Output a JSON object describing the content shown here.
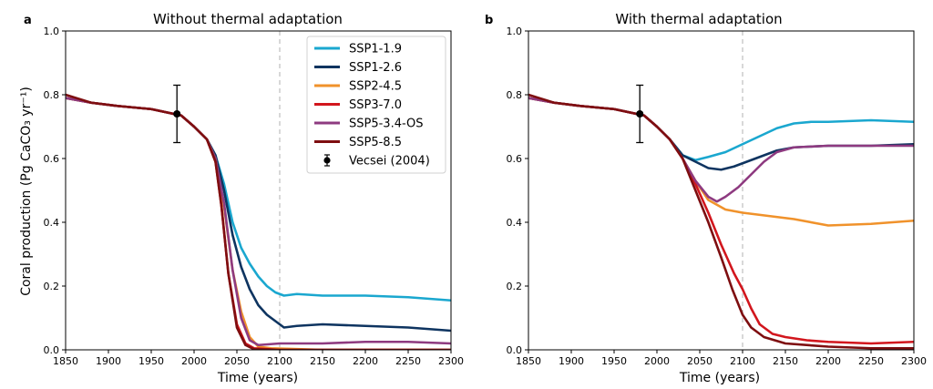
{
  "chart_data": [
    {
      "type": "line",
      "panel_letter": "a",
      "title": "Without thermal adaptation",
      "xlabel": "Time (years)",
      "ylabel": "Coral production (Pg CaCO₃ yr⁻¹)",
      "xlim": [
        1850,
        2300
      ],
      "ylim": [
        0,
        1.0
      ],
      "xticks": [
        "1850",
        "1900",
        "1950",
        "2000",
        "2050",
        "2100",
        "2150",
        "2200",
        "2250",
        "2300"
      ],
      "yticks": [
        "0.0",
        "0.2",
        "0.4",
        "0.6",
        "0.8",
        "1.0"
      ],
      "reference_line_x": 2100,
      "legend_position": "top-right",
      "series": [
        {
          "name": "SSP1-1.9",
          "color": "#1aa7cf",
          "points": [
            [
              1850,
              0.79
            ],
            [
              1880,
              0.775
            ],
            [
              1910,
              0.765
            ],
            [
              1950,
              0.755
            ],
            [
              1985,
              0.735
            ],
            [
              2000,
              0.7
            ],
            [
              2015,
              0.66
            ],
            [
              2025,
              0.61
            ],
            [
              2035,
              0.52
            ],
            [
              2045,
              0.4
            ],
            [
              2055,
              0.32
            ],
            [
              2065,
              0.27
            ],
            [
              2075,
              0.23
            ],
            [
              2085,
              0.2
            ],
            [
              2095,
              0.18
            ],
            [
              2105,
              0.17
            ],
            [
              2120,
              0.175
            ],
            [
              2150,
              0.17
            ],
            [
              2200,
              0.17
            ],
            [
              2250,
              0.165
            ],
            [
              2300,
              0.155
            ]
          ]
        },
        {
          "name": "SSP1-2.6",
          "color": "#0e3460",
          "points": [
            [
              1850,
              0.79
            ],
            [
              1880,
              0.775
            ],
            [
              1910,
              0.765
            ],
            [
              1950,
              0.755
            ],
            [
              1985,
              0.735
            ],
            [
              2000,
              0.7
            ],
            [
              2015,
              0.66
            ],
            [
              2025,
              0.61
            ],
            [
              2035,
              0.5
            ],
            [
              2045,
              0.36
            ],
            [
              2055,
              0.26
            ],
            [
              2065,
              0.19
            ],
            [
              2075,
              0.14
            ],
            [
              2085,
              0.11
            ],
            [
              2095,
              0.09
            ],
            [
              2105,
              0.07
            ],
            [
              2120,
              0.075
            ],
            [
              2150,
              0.08
            ],
            [
              2200,
              0.075
            ],
            [
              2250,
              0.07
            ],
            [
              2300,
              0.06
            ]
          ]
        },
        {
          "name": "SSP2-4.5",
          "color": "#f0922b",
          "points": [
            [
              1850,
              0.79
            ],
            [
              1880,
              0.775
            ],
            [
              1910,
              0.765
            ],
            [
              1950,
              0.755
            ],
            [
              1985,
              0.735
            ],
            [
              2000,
              0.7
            ],
            [
              2015,
              0.66
            ],
            [
              2025,
              0.6
            ],
            [
              2035,
              0.45
            ],
            [
              2045,
              0.25
            ],
            [
              2055,
              0.12
            ],
            [
              2065,
              0.04
            ],
            [
              2075,
              0.01
            ],
            [
              2090,
              0.005
            ],
            [
              2150,
              0.0
            ],
            [
              2300,
              0.0
            ]
          ]
        },
        {
          "name": "SSP3-7.0",
          "color": "#d2161d",
          "points": [
            [
              1850,
              0.79
            ],
            [
              1880,
              0.775
            ],
            [
              1910,
              0.765
            ],
            [
              1950,
              0.755
            ],
            [
              1985,
              0.735
            ],
            [
              2000,
              0.7
            ],
            [
              2015,
              0.66
            ],
            [
              2025,
              0.59
            ],
            [
              2032,
              0.45
            ],
            [
              2040,
              0.24
            ],
            [
              2050,
              0.08
            ],
            [
              2060,
              0.02
            ],
            [
              2070,
              0.005
            ],
            [
              2100,
              0.0
            ],
            [
              2300,
              0.0
            ]
          ]
        },
        {
          "name": "SSP5-3.4-OS",
          "color": "#8e3a80",
          "points": [
            [
              1850,
              0.79
            ],
            [
              1880,
              0.775
            ],
            [
              1910,
              0.765
            ],
            [
              1950,
              0.755
            ],
            [
              1985,
              0.735
            ],
            [
              2000,
              0.7
            ],
            [
              2015,
              0.66
            ],
            [
              2025,
              0.6
            ],
            [
              2035,
              0.46
            ],
            [
              2045,
              0.25
            ],
            [
              2055,
              0.1
            ],
            [
              2065,
              0.03
            ],
            [
              2075,
              0.015
            ],
            [
              2100,
              0.02
            ],
            [
              2150,
              0.02
            ],
            [
              2200,
              0.025
            ],
            [
              2250,
              0.025
            ],
            [
              2300,
              0.02
            ]
          ]
        },
        {
          "name": "SSP5-8.5",
          "color": "#7e0e10",
          "points": [
            [
              1850,
              0.8
            ],
            [
              1880,
              0.775
            ],
            [
              1910,
              0.765
            ],
            [
              1950,
              0.755
            ],
            [
              1985,
              0.735
            ],
            [
              2000,
              0.7
            ],
            [
              2015,
              0.66
            ],
            [
              2025,
              0.59
            ],
            [
              2032,
              0.45
            ],
            [
              2040,
              0.24
            ],
            [
              2050,
              0.07
            ],
            [
              2060,
              0.015
            ],
            [
              2070,
              0.002
            ],
            [
              2100,
              0.0
            ],
            [
              2300,
              0.0
            ]
          ]
        }
      ],
      "observation": {
        "name": "Vecsei (2004)",
        "x": 1980,
        "y": 0.74,
        "yerr_low": 0.65,
        "yerr_high": 0.83,
        "color": "#000000"
      }
    },
    {
      "type": "line",
      "panel_letter": "b",
      "title": "With thermal adaptation",
      "xlabel": "Time (years)",
      "ylabel": "",
      "xlim": [
        1850,
        2300
      ],
      "ylim": [
        0,
        1.0
      ],
      "xticks": [
        "1850",
        "1900",
        "1950",
        "2000",
        "2050",
        "2100",
        "2150",
        "2200",
        "2250",
        "2300"
      ],
      "yticks": [
        "0.0",
        "0.2",
        "0.4",
        "0.6",
        "0.8",
        "1.0"
      ],
      "reference_line_x": 2100,
      "series": [
        {
          "name": "SSP1-1.9",
          "color": "#1aa7cf",
          "points": [
            [
              1850,
              0.79
            ],
            [
              1880,
              0.775
            ],
            [
              1910,
              0.765
            ],
            [
              1950,
              0.755
            ],
            [
              1985,
              0.735
            ],
            [
              2000,
              0.7
            ],
            [
              2015,
              0.66
            ],
            [
              2030,
              0.61
            ],
            [
              2045,
              0.595
            ],
            [
              2060,
              0.605
            ],
            [
              2080,
              0.62
            ],
            [
              2100,
              0.645
            ],
            [
              2120,
              0.67
            ],
            [
              2140,
              0.695
            ],
            [
              2160,
              0.71
            ],
            [
              2180,
              0.715
            ],
            [
              2200,
              0.715
            ],
            [
              2250,
              0.72
            ],
            [
              2300,
              0.715
            ]
          ]
        },
        {
          "name": "SSP1-2.6",
          "color": "#0e3460",
          "points": [
            [
              1850,
              0.79
            ],
            [
              1880,
              0.775
            ],
            [
              1910,
              0.765
            ],
            [
              1950,
              0.755
            ],
            [
              1985,
              0.735
            ],
            [
              2000,
              0.7
            ],
            [
              2015,
              0.66
            ],
            [
              2030,
              0.61
            ],
            [
              2045,
              0.59
            ],
            [
              2060,
              0.57
            ],
            [
              2075,
              0.565
            ],
            [
              2090,
              0.575
            ],
            [
              2105,
              0.59
            ],
            [
              2120,
              0.605
            ],
            [
              2140,
              0.625
            ],
            [
              2160,
              0.635
            ],
            [
              2200,
              0.64
            ],
            [
              2250,
              0.64
            ],
            [
              2300,
              0.645
            ]
          ]
        },
        {
          "name": "SSP2-4.5",
          "color": "#f0922b",
          "points": [
            [
              1850,
              0.79
            ],
            [
              1880,
              0.775
            ],
            [
              1910,
              0.765
            ],
            [
              1950,
              0.755
            ],
            [
              1985,
              0.735
            ],
            [
              2000,
              0.7
            ],
            [
              2015,
              0.66
            ],
            [
              2030,
              0.6
            ],
            [
              2045,
              0.53
            ],
            [
              2060,
              0.47
            ],
            [
              2080,
              0.44
            ],
            [
              2100,
              0.43
            ],
            [
              2130,
              0.42
            ],
            [
              2160,
              0.41
            ],
            [
              2200,
              0.39
            ],
            [
              2250,
              0.395
            ],
            [
              2300,
              0.405
            ]
          ]
        },
        {
          "name": "SSP3-7.0",
          "color": "#d2161d",
          "points": [
            [
              1850,
              0.79
            ],
            [
              1880,
              0.775
            ],
            [
              1910,
              0.765
            ],
            [
              1950,
              0.755
            ],
            [
              1985,
              0.735
            ],
            [
              2000,
              0.7
            ],
            [
              2015,
              0.66
            ],
            [
              2030,
              0.6
            ],
            [
              2045,
              0.52
            ],
            [
              2060,
              0.43
            ],
            [
              2075,
              0.33
            ],
            [
              2090,
              0.24
            ],
            [
              2100,
              0.19
            ],
            [
              2110,
              0.13
            ],
            [
              2120,
              0.08
            ],
            [
              2135,
              0.05
            ],
            [
              2150,
              0.04
            ],
            [
              2175,
              0.03
            ],
            [
              2200,
              0.025
            ],
            [
              2250,
              0.02
            ],
            [
              2300,
              0.025
            ]
          ]
        },
        {
          "name": "SSP5-3.4-OS",
          "color": "#8e3a80",
          "points": [
            [
              1850,
              0.79
            ],
            [
              1880,
              0.775
            ],
            [
              1910,
              0.765
            ],
            [
              1950,
              0.755
            ],
            [
              1985,
              0.735
            ],
            [
              2000,
              0.7
            ],
            [
              2015,
              0.66
            ],
            [
              2030,
              0.6
            ],
            [
              2045,
              0.53
            ],
            [
              2060,
              0.48
            ],
            [
              2070,
              0.465
            ],
            [
              2080,
              0.48
            ],
            [
              2095,
              0.51
            ],
            [
              2110,
              0.55
            ],
            [
              2125,
              0.59
            ],
            [
              2140,
              0.62
            ],
            [
              2160,
              0.635
            ],
            [
              2200,
              0.64
            ],
            [
              2250,
              0.64
            ],
            [
              2300,
              0.64
            ]
          ]
        },
        {
          "name": "SSP5-8.5",
          "color": "#7e0e10",
          "points": [
            [
              1850,
              0.8
            ],
            [
              1880,
              0.775
            ],
            [
              1910,
              0.765
            ],
            [
              1950,
              0.755
            ],
            [
              1985,
              0.735
            ],
            [
              2000,
              0.7
            ],
            [
              2015,
              0.66
            ],
            [
              2030,
              0.6
            ],
            [
              2045,
              0.5
            ],
            [
              2060,
              0.4
            ],
            [
              2075,
              0.29
            ],
            [
              2088,
              0.19
            ],
            [
              2100,
              0.11
            ],
            [
              2110,
              0.07
            ],
            [
              2125,
              0.04
            ],
            [
              2150,
              0.02
            ],
            [
              2200,
              0.01
            ],
            [
              2250,
              0.005
            ],
            [
              2300,
              0.005
            ]
          ]
        }
      ],
      "observation": {
        "name": "Vecsei (2004)",
        "x": 1980,
        "y": 0.74,
        "yerr_low": 0.65,
        "yerr_high": 0.83,
        "color": "#000000"
      }
    }
  ]
}
